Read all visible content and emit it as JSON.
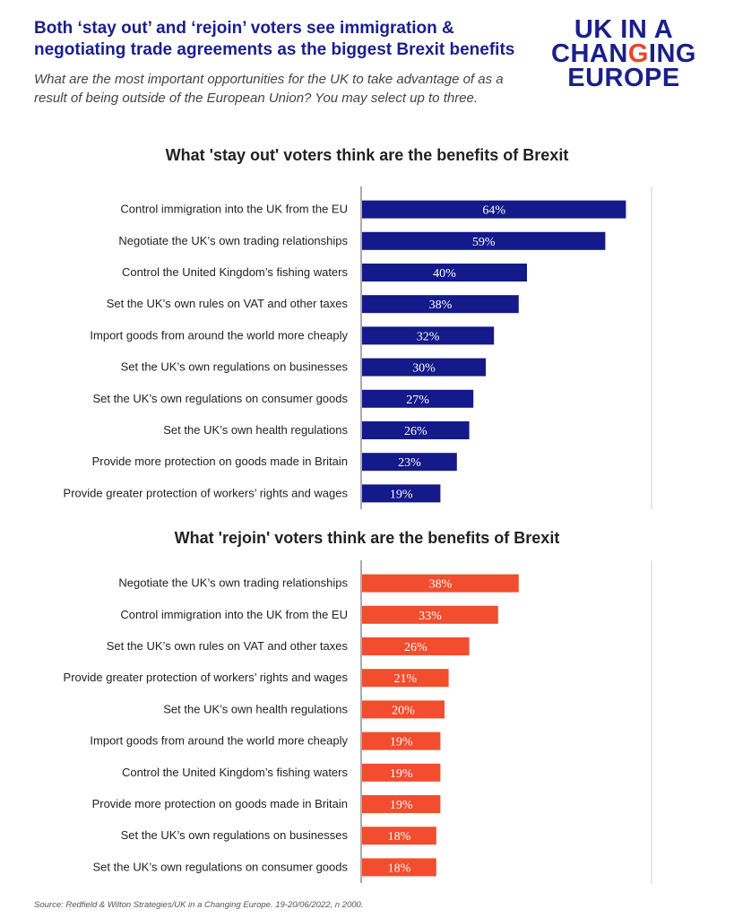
{
  "header": {
    "title": "Both ‘stay out’ and ‘rejoin’ voters see immigration & negotiating trade agreements as the biggest Brexit benefits",
    "subtitle": "What are the most important opportunities for the UK to take advantage of as a result of being outside of the European Union? You may select up to three."
  },
  "logo": {
    "line1": "UK IN A",
    "line2a": "CHAN",
    "line2b": "G",
    "line2c": "ING",
    "line3": "EUROPE"
  },
  "footer": {
    "source": "Source: Redfield & Wilton Strategies/UK in a Changing Europe. 19-20/06/2022, n 2000."
  },
  "chart_data": [
    {
      "type": "bar",
      "orientation": "horizontal",
      "title": "What 'stay out' voters think are the benefits of Brexit",
      "color": "#141a8a",
      "categories": [
        "Control immigration into the UK from the EU",
        "Negotiate the UK’s own trading relationships",
        "Control the United Kingdom’s fishing waters",
        "Set the UK’s own rules on VAT and other taxes",
        "Import goods from around the world more cheaply",
        "Set the UK’s own regulations on businesses",
        "Set the UK’s own regulations on consumer goods",
        "Set the UK’s own health regulations",
        "Provide more protection on goods made in Britain",
        "Provide greater protection of workers’ rights and wages"
      ],
      "values": [
        64,
        59,
        40,
        38,
        32,
        30,
        27,
        26,
        23,
        19
      ],
      "value_suffix": "%",
      "xlim": [
        0,
        70
      ]
    },
    {
      "type": "bar",
      "orientation": "horizontal",
      "title": "What 'rejoin' voters think are the benefits of Brexit",
      "color": "#f24d2e",
      "categories": [
        "Negotiate the UK’s own trading relationships",
        "Control immigration into the UK from the EU",
        "Set the UK’s own rules on VAT and other taxes",
        "Provide greater protection of workers’ rights and wages",
        "Set the UK’s own health regulations",
        "Import goods from around the world more cheaply",
        "Control the United Kingdom’s fishing waters",
        "Provide more protection on goods made in Britain",
        "Set the UK’s own regulations on businesses",
        "Set the UK’s own regulations on consumer goods"
      ],
      "values": [
        38,
        33,
        26,
        21,
        20,
        19,
        19,
        19,
        18,
        18
      ],
      "value_suffix": "%",
      "xlim": [
        0,
        70
      ]
    }
  ]
}
